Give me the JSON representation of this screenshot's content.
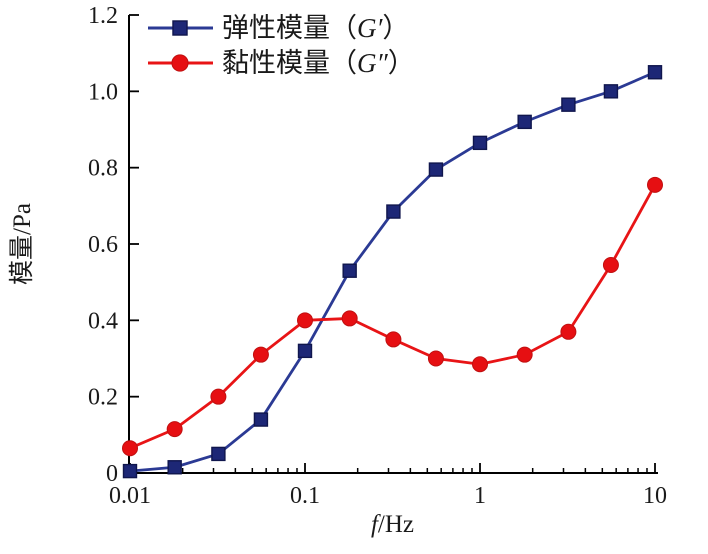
{
  "chart_data": {
    "type": "line",
    "title": "",
    "xlabel": {
      "italic": "f",
      "rest": "/Hz"
    },
    "ylabel": "模量/Pa",
    "x_scale": "log",
    "xlim": [
      0.01,
      10
    ],
    "ylim": [
      0,
      1.2
    ],
    "grid": false,
    "legend_position": "top-left",
    "x_ticks": {
      "values": [
        0.01,
        0.1,
        1,
        10
      ],
      "labels": [
        "0.01",
        "0.1",
        "1",
        "10"
      ]
    },
    "y_ticks": {
      "values": [
        0,
        0.2,
        0.4,
        0.6,
        0.8,
        1.0,
        1.2
      ],
      "labels": [
        "0",
        "0.2",
        "0.4",
        "0.6",
        "0.8",
        "1.0",
        "1.2"
      ]
    },
    "x": [
      0.01,
      0.018,
      0.032,
      0.056,
      0.1,
      0.18,
      0.32,
      0.56,
      1,
      1.8,
      3.2,
      5.6,
      10
    ],
    "series": [
      {
        "name": "弹性模量（G′）",
        "label_prefix": "弹性模量（",
        "label_symbol": "G′",
        "label_suffix": "）",
        "marker": "square",
        "line_color": "#2b3a94",
        "marker_fill": "#1d2776",
        "marker_stroke": "#10164d",
        "values": [
          0.005,
          0.015,
          0.05,
          0.14,
          0.32,
          0.53,
          0.685,
          0.795,
          0.865,
          0.92,
          0.965,
          1.0,
          1.05
        ]
      },
      {
        "name": "黏性模量（G″）",
        "label_prefix": "黏性模量（",
        "label_symbol": "G″",
        "label_suffix": "）",
        "marker": "circle",
        "line_color": "#e81416",
        "marker_fill": "#e60f12",
        "marker_stroke": "#c01010",
        "values": [
          0.065,
          0.115,
          0.2,
          0.31,
          0.4,
          0.405,
          0.35,
          0.3,
          0.285,
          0.31,
          0.37,
          0.545,
          0.755
        ]
      }
    ],
    "axis_color": "#000000"
  }
}
